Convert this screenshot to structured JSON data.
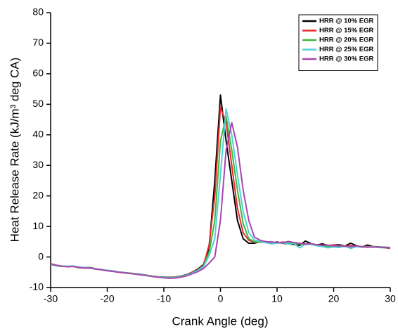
{
  "chart_data": {
    "type": "line",
    "xlabel": "Crank Angle (deg)",
    "ylabel": "Heat Release Rate (kJ/m³ deg CA)",
    "x": [
      -30,
      -29,
      -28,
      -27,
      -26,
      -25,
      -24,
      -23,
      -22,
      -21,
      -20,
      -19,
      -18,
      -17,
      -16,
      -15,
      -14,
      -13,
      -12,
      -11,
      -10,
      -9,
      -8,
      -7,
      -6,
      -5,
      -4,
      -3,
      -2,
      -1,
      0,
      1,
      2,
      3,
      4,
      5,
      6,
      7,
      8,
      9,
      10,
      11,
      12,
      13,
      14,
      15,
      16,
      17,
      18,
      19,
      20,
      21,
      22,
      23,
      24,
      25,
      26,
      27,
      28,
      29,
      30
    ],
    "series": [
      {
        "name": "HRR @ 10% EGR",
        "color": "#000000",
        "values": [
          -2.5,
          -2.8,
          -3,
          -3.1,
          -3,
          -3.4,
          -3.5,
          -3.5,
          -3.9,
          -4.1,
          -4.4,
          -4.6,
          -4.9,
          -5.1,
          -5.3,
          -5.5,
          -5.7,
          -6,
          -6.3,
          -6.5,
          -6.6,
          -6.7,
          -6.6,
          -6.3,
          -5.8,
          -5,
          -4,
          -2.5,
          3,
          25,
          53,
          38,
          25,
          12,
          6,
          4.5,
          4.5,
          5,
          4.8,
          4.6,
          4.9,
          4.5,
          4.3,
          4.1,
          3.8,
          5.2,
          4.4,
          3.9,
          4.3,
          3.7,
          3.9,
          4,
          3.6,
          4.5,
          3.7,
          3.3,
          3.9,
          3.4,
          3.3,
          3.2,
          3.1
        ]
      },
      {
        "name": "HRR @ 15% EGR",
        "color": "#e8282b",
        "values": [
          -2.2,
          -2.7,
          -3,
          -3.2,
          -3.1,
          -3.5,
          -3.6,
          -3.6,
          -4,
          -4.2,
          -4.5,
          -4.7,
          -5,
          -5.2,
          -5.4,
          -5.6,
          -5.8,
          -6.1,
          -6.4,
          -6.6,
          -6.7,
          -6.8,
          -6.7,
          -6.4,
          -5.9,
          -5.1,
          -4.2,
          -2.8,
          4,
          20,
          49,
          44,
          30,
          16,
          8,
          5.5,
          4.8,
          4.9,
          5,
          4.7,
          4.6,
          4.9,
          4.6,
          4.4,
          4.2,
          4.3,
          4.1,
          4,
          3.9,
          3.8,
          3.9,
          3.7,
          3.6,
          3.7,
          3.5,
          3.4,
          3.5,
          3.3,
          3.2,
          3,
          2.8
        ]
      },
      {
        "name": "HRR @ 20% EGR",
        "color": "#3cb83c",
        "values": [
          -2.4,
          -2.9,
          -3.1,
          -3.1,
          -3.1,
          -3.5,
          -3.5,
          -3.6,
          -3.9,
          -4.2,
          -4.4,
          -4.7,
          -4.9,
          -5.2,
          -5.3,
          -5.6,
          -5.8,
          -6,
          -6.3,
          -6.5,
          -6.7,
          -6.8,
          -6.7,
          -6.4,
          -5.9,
          -5.2,
          -4.3,
          -3,
          1.5,
          12,
          38,
          46,
          35,
          22,
          11,
          6,
          5,
          4.8,
          5,
          4.9,
          4.7,
          4.5,
          4.6,
          4.4,
          4.3,
          4.1,
          4.3,
          3.8,
          3.6,
          3.5,
          3.3,
          3.5,
          3.4,
          3.3,
          3.5,
          3.4,
          3.3,
          3.2,
          3.3,
          3.2,
          3.1
        ]
      },
      {
        "name": "HRR @ 25% EGR",
        "color": "#4fd0d8",
        "values": [
          -2.5,
          -2.8,
          -3,
          -3,
          -3,
          -3.3,
          -3.5,
          -3.6,
          -4,
          -4.1,
          -4.4,
          -4.6,
          -4.9,
          -5.1,
          -5.4,
          -5.5,
          -5.8,
          -6.1,
          -6.3,
          -6.6,
          -6.7,
          -6.9,
          -6.8,
          -6.5,
          -6,
          -5.3,
          -4.4,
          -3.2,
          0.5,
          6,
          27,
          48.5,
          40,
          27,
          15,
          8,
          5.5,
          5.2,
          4.7,
          4.3,
          4.5,
          4.8,
          4.2,
          4.4,
          3,
          4.2,
          4.1,
          3.7,
          3.4,
          3,
          3.3,
          3.1,
          3.6,
          2.8,
          3.4,
          3.2,
          3.3,
          3.4,
          3.1,
          3,
          3
        ]
      },
      {
        "name": "HRR @ 30% EGR",
        "color": "#a846b0",
        "values": [
          -2.3,
          -2.7,
          -3,
          -3.2,
          -3.1,
          -3.4,
          -3.6,
          -3.6,
          -4,
          -4.2,
          -4.5,
          -4.7,
          -5,
          -5.2,
          -5.4,
          -5.6,
          -5.9,
          -6.1,
          -6.4,
          -6.6,
          -6.8,
          -7,
          -6.9,
          -6.6,
          -6.2,
          -5.5,
          -4.8,
          -3.8,
          -2,
          0,
          12,
          35,
          44,
          36,
          22,
          12,
          6.5,
          5.5,
          5,
          4.9,
          4.8,
          4.6,
          5.1,
          4.7,
          4.5,
          4.2,
          4.4,
          4,
          3.8,
          3.9,
          3.6,
          3.7,
          3.5,
          3.4,
          3.6,
          3.3,
          3.2,
          3.3,
          3.2,
          3.1,
          3
        ]
      }
    ],
    "xlim": [
      -30,
      30
    ],
    "xticks": [
      -30,
      -20,
      -10,
      0,
      10,
      20,
      30
    ],
    "ylim": [
      -10,
      80
    ],
    "yticks": [
      -10,
      0,
      10,
      20,
      30,
      40,
      50,
      60,
      70,
      80
    ],
    "legend": "upper right"
  }
}
